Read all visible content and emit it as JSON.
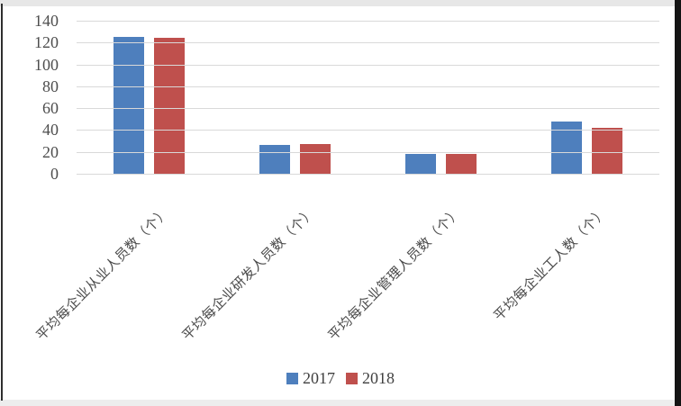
{
  "chart_data": {
    "type": "bar",
    "title": "",
    "xlabel": "",
    "ylabel": "",
    "categories": [
      "平均每企业从业人员数（个）",
      "平均每企业研发人员数（个）",
      "平均每企业管理人员数（个）",
      "平均每企业工人数（个）"
    ],
    "series": [
      {
        "name": "2017",
        "color": "#4e7fbd",
        "values": [
          125,
          26,
          18,
          48
        ]
      },
      {
        "name": "2018",
        "color": "#bf504d",
        "values": [
          124,
          27,
          18,
          42
        ]
      }
    ],
    "ylim": [
      0,
      140
    ],
    "yticks": [
      0,
      20,
      40,
      60,
      80,
      100,
      120,
      140
    ],
    "grid": true,
    "legend_position": "bottom"
  },
  "colors": {
    "gridline": "#d9d9d9",
    "tick_text": "#4d4d4d",
    "category_text": "#4a4a4a",
    "legend_text": "#404040"
  }
}
